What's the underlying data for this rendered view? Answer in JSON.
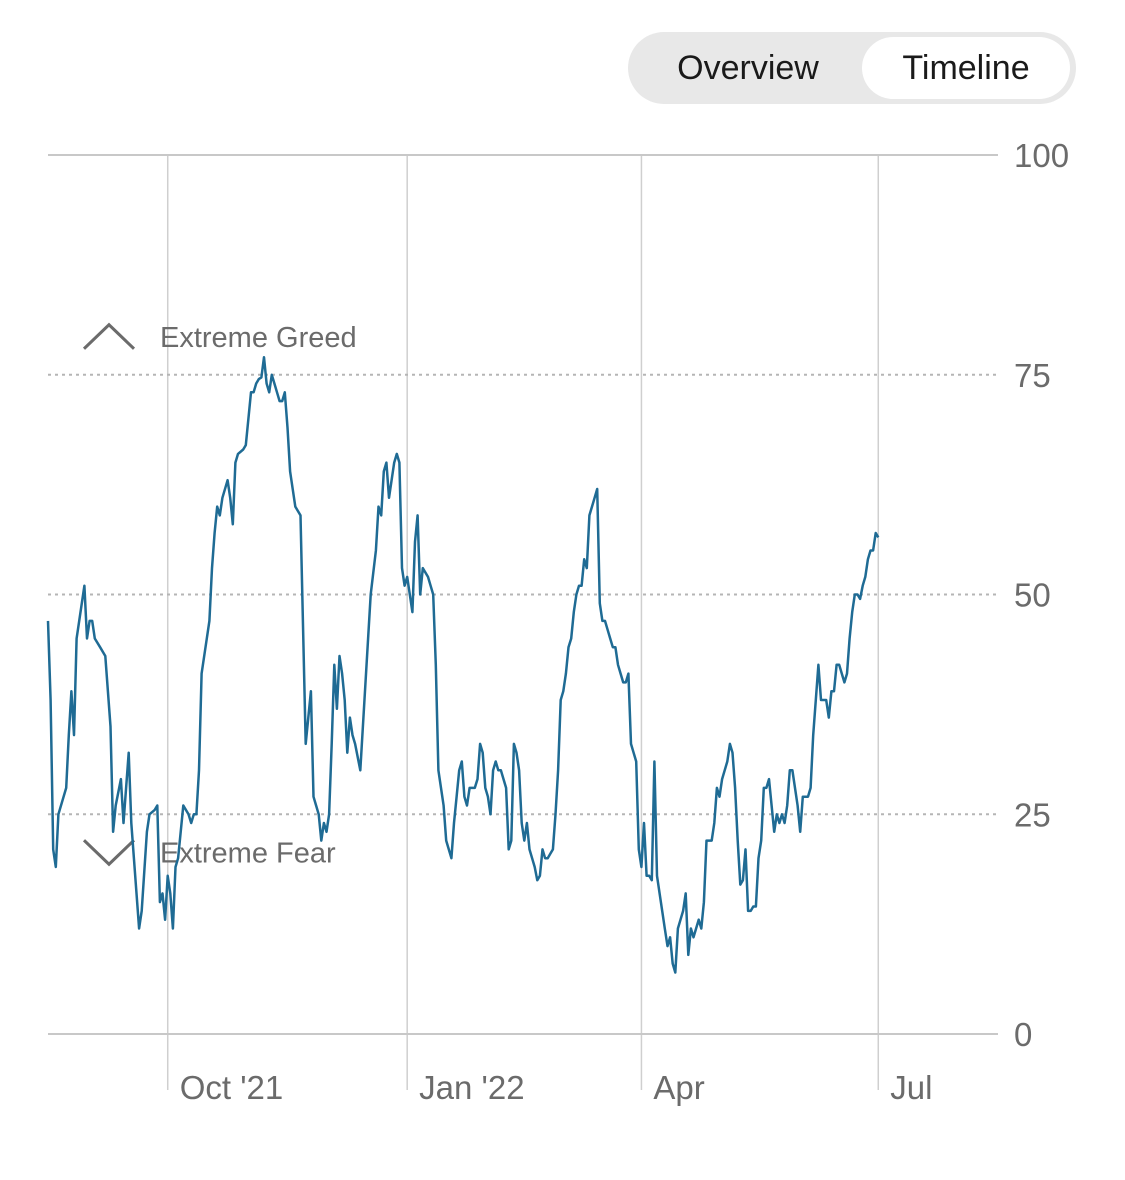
{
  "toggle": {
    "options": [
      "Overview",
      "Timeline"
    ],
    "selected": "Timeline"
  },
  "colors": {
    "line": "#1f6b94",
    "grid": "#b5b5b5",
    "axis_text": "#6b6b6b",
    "toggle_bg": "#e8e8e8"
  },
  "icons": {
    "greed": "chevron-up-icon",
    "fear": "chevron-down-icon"
  },
  "chart_data": {
    "type": "line",
    "title": "",
    "xlabel": "",
    "ylabel": "",
    "ylim": [
      0,
      100
    ],
    "y_ticks": [
      0,
      25,
      50,
      75,
      100
    ],
    "x_ticks": [
      {
        "label": "Oct '21",
        "day": 30
      },
      {
        "label": "Jan '22",
        "day": 122
      },
      {
        "label": "Apr",
        "day": 212
      },
      {
        "label": "Jul",
        "day": 303
      }
    ],
    "x_unit": "days since Sep 1, 2021",
    "xlim": [
      -16,
      349
    ],
    "zones": [
      {
        "label": "Extreme Greed",
        "value": 75,
        "icon": "chevron-up-icon"
      },
      {
        "label": "Extreme Fear",
        "value": 25,
        "icon": "chevron-down-icon"
      }
    ],
    "grid": "dotted at 25/50/75, solid at 100 and 0, vertical at month ticks",
    "series": [
      {
        "name": "",
        "points": [
          [
            -16,
            47
          ],
          [
            -15,
            38
          ],
          [
            -14,
            21
          ],
          [
            -13,
            19
          ],
          [
            -12,
            25
          ],
          [
            -10,
            27
          ],
          [
            -9,
            28
          ],
          [
            -8,
            34
          ],
          [
            -7,
            39
          ],
          [
            -6,
            34
          ],
          [
            -5,
            45
          ],
          [
            -4,
            47
          ],
          [
            -3,
            49
          ],
          [
            -2,
            51
          ],
          [
            -1,
            45
          ],
          [
            0,
            47
          ],
          [
            1,
            47
          ],
          [
            2,
            45
          ],
          [
            4,
            44
          ],
          [
            6,
            43
          ],
          [
            8,
            35
          ],
          [
            9,
            23
          ],
          [
            10,
            26
          ],
          [
            12,
            29
          ],
          [
            13,
            24
          ],
          [
            14,
            28
          ],
          [
            15,
            32
          ],
          [
            16,
            24
          ],
          [
            17,
            20
          ],
          [
            19,
            12
          ],
          [
            20,
            14
          ],
          [
            22,
            23
          ],
          [
            23,
            25
          ],
          [
            25,
            25.5
          ],
          [
            26,
            26
          ],
          [
            27,
            15
          ],
          [
            28,
            16
          ],
          [
            29,
            13
          ],
          [
            30,
            18
          ],
          [
            31,
            16
          ],
          [
            32,
            12
          ],
          [
            33,
            19
          ],
          [
            34,
            20
          ],
          [
            36,
            26
          ],
          [
            38,
            25
          ],
          [
            39,
            24
          ],
          [
            40,
            25
          ],
          [
            41,
            25
          ],
          [
            42,
            30
          ],
          [
            43,
            41
          ],
          [
            45,
            45
          ],
          [
            46,
            47
          ],
          [
            47,
            53
          ],
          [
            48,
            57
          ],
          [
            49,
            60
          ],
          [
            50,
            59
          ],
          [
            51,
            61
          ],
          [
            53,
            63
          ],
          [
            54,
            61
          ],
          [
            55,
            58
          ],
          [
            56,
            65
          ],
          [
            57,
            66
          ],
          [
            59,
            66.5
          ],
          [
            60,
            67
          ],
          [
            61,
            70
          ],
          [
            62,
            73
          ],
          [
            63,
            73
          ],
          [
            64,
            74
          ],
          [
            65,
            74.5
          ],
          [
            66,
            74.7
          ],
          [
            67,
            77
          ],
          [
            68,
            74
          ],
          [
            69,
            73
          ],
          [
            70,
            75
          ],
          [
            71,
            74
          ],
          [
            72,
            73
          ],
          [
            73,
            72
          ],
          [
            74,
            72
          ],
          [
            75,
            73
          ],
          [
            76,
            69
          ],
          [
            77,
            64
          ],
          [
            78,
            62
          ],
          [
            79,
            60
          ],
          [
            80,
            59.5
          ],
          [
            81,
            59
          ],
          [
            82,
            46
          ],
          [
            83,
            33
          ],
          [
            84,
            36
          ],
          [
            85,
            39
          ],
          [
            86,
            27
          ],
          [
            87,
            26
          ],
          [
            88,
            25
          ],
          [
            89,
            22
          ],
          [
            90,
            24
          ],
          [
            91,
            23
          ],
          [
            92,
            25
          ],
          [
            93,
            33
          ],
          [
            94,
            42
          ],
          [
            95,
            37
          ],
          [
            96,
            43
          ],
          [
            97,
            41
          ],
          [
            98,
            38
          ],
          [
            99,
            32
          ],
          [
            100,
            36
          ],
          [
            101,
            34
          ],
          [
            102,
            33
          ],
          [
            104,
            30
          ],
          [
            106,
            40
          ],
          [
            107,
            45
          ],
          [
            108,
            50
          ],
          [
            110,
            55
          ],
          [
            111,
            60
          ],
          [
            112,
            59
          ],
          [
            113,
            64
          ],
          [
            114,
            65
          ],
          [
            115,
            61
          ],
          [
            116,
            63
          ],
          [
            117,
            65
          ],
          [
            118,
            66
          ],
          [
            119,
            65
          ],
          [
            120,
            53
          ],
          [
            121,
            51
          ],
          [
            122,
            52
          ],
          [
            123,
            50
          ],
          [
            124,
            48
          ],
          [
            125,
            56
          ],
          [
            126,
            59
          ],
          [
            127,
            50
          ],
          [
            128,
            53
          ],
          [
            130,
            52
          ],
          [
            131,
            51
          ],
          [
            132,
            50
          ],
          [
            133,
            42
          ],
          [
            134,
            30
          ],
          [
            135,
            28
          ],
          [
            136,
            26
          ],
          [
            137,
            22
          ],
          [
            138,
            21
          ],
          [
            139,
            20
          ],
          [
            140,
            24
          ],
          [
            141,
            27
          ],
          [
            142,
            30
          ],
          [
            143,
            31
          ],
          [
            144,
            27
          ],
          [
            145,
            26
          ],
          [
            146,
            28
          ],
          [
            147,
            28
          ],
          [
            148,
            28
          ],
          [
            149,
            29
          ],
          [
            150,
            33
          ],
          [
            151,
            32
          ],
          [
            152,
            28
          ],
          [
            153,
            27
          ],
          [
            154,
            25
          ],
          [
            155,
            30
          ],
          [
            156,
            31
          ],
          [
            157,
            30
          ],
          [
            158,
            30
          ],
          [
            159,
            29
          ],
          [
            160,
            28
          ],
          [
            161,
            21
          ],
          [
            162,
            22
          ],
          [
            163,
            33
          ],
          [
            164,
            32
          ],
          [
            165,
            30
          ],
          [
            166,
            24
          ],
          [
            167,
            22
          ],
          [
            168,
            24
          ],
          [
            169,
            21
          ],
          [
            170,
            20
          ],
          [
            171,
            19
          ],
          [
            172,
            17.5
          ],
          [
            173,
            18
          ],
          [
            174,
            21
          ],
          [
            175,
            20
          ],
          [
            176,
            20
          ],
          [
            177,
            20.5
          ],
          [
            178,
            21
          ],
          [
            179,
            25
          ],
          [
            180,
            30
          ],
          [
            181,
            38
          ],
          [
            182,
            39
          ],
          [
            183,
            41
          ],
          [
            184,
            44
          ],
          [
            185,
            45
          ],
          [
            186,
            48
          ],
          [
            187,
            50
          ],
          [
            188,
            51
          ],
          [
            189,
            51
          ],
          [
            190,
            54
          ],
          [
            191,
            53
          ],
          [
            192,
            59
          ],
          [
            193,
            60
          ],
          [
            194,
            61
          ],
          [
            195,
            62
          ],
          [
            196,
            49
          ],
          [
            197,
            47
          ],
          [
            198,
            47
          ],
          [
            199,
            46
          ],
          [
            200,
            45
          ],
          [
            201,
            44
          ],
          [
            202,
            44
          ],
          [
            203,
            42
          ],
          [
            204,
            41
          ],
          [
            205,
            40
          ],
          [
            206,
            40
          ],
          [
            207,
            41
          ],
          [
            208,
            33
          ],
          [
            209,
            32
          ],
          [
            210,
            31
          ],
          [
            211,
            21
          ],
          [
            212,
            19
          ],
          [
            213,
            24
          ],
          [
            214,
            18
          ],
          [
            215,
            18
          ],
          [
            216,
            17.5
          ],
          [
            217,
            31
          ],
          [
            218,
            18
          ],
          [
            219,
            16
          ],
          [
            220,
            14
          ],
          [
            221,
            12
          ],
          [
            222,
            10
          ],
          [
            223,
            11
          ],
          [
            224,
            8
          ],
          [
            225,
            7
          ],
          [
            226,
            12
          ],
          [
            227,
            13
          ],
          [
            228,
            14
          ],
          [
            229,
            16
          ],
          [
            230,
            9
          ],
          [
            231,
            12
          ],
          [
            232,
            11
          ],
          [
            233,
            12
          ],
          [
            234,
            13
          ],
          [
            235,
            12
          ],
          [
            236,
            15
          ],
          [
            237,
            22
          ],
          [
            238,
            22
          ],
          [
            239,
            22
          ],
          [
            240,
            24
          ],
          [
            241,
            28
          ],
          [
            242,
            27
          ],
          [
            243,
            29
          ],
          [
            244,
            30
          ],
          [
            245,
            31
          ],
          [
            246,
            33
          ],
          [
            247,
            32
          ],
          [
            248,
            28
          ],
          [
            249,
            22
          ],
          [
            250,
            17
          ],
          [
            251,
            17.5
          ],
          [
            252,
            21
          ],
          [
            253,
            14
          ],
          [
            254,
            14
          ],
          [
            255,
            14.5
          ],
          [
            256,
            14.5
          ],
          [
            257,
            20
          ],
          [
            258,
            22
          ],
          [
            259,
            28
          ],
          [
            260,
            28
          ],
          [
            261,
            29
          ],
          [
            262,
            26
          ],
          [
            263,
            23
          ],
          [
            264,
            25
          ],
          [
            265,
            24
          ],
          [
            266,
            25
          ],
          [
            267,
            24
          ],
          [
            268,
            26
          ],
          [
            269,
            30
          ],
          [
            270,
            30
          ],
          [
            271,
            28
          ],
          [
            272,
            26
          ],
          [
            273,
            23
          ],
          [
            274,
            27
          ],
          [
            275,
            27
          ],
          [
            276,
            27
          ],
          [
            277,
            28
          ],
          [
            278,
            34
          ],
          [
            279,
            38
          ],
          [
            280,
            42
          ],
          [
            281,
            38
          ],
          [
            282,
            38
          ],
          [
            283,
            38
          ],
          [
            284,
            36
          ],
          [
            285,
            39
          ],
          [
            286,
            39
          ],
          [
            287,
            42
          ],
          [
            288,
            42
          ],
          [
            289,
            41
          ],
          [
            290,
            40
          ],
          [
            291,
            41
          ],
          [
            292,
            45
          ],
          [
            293,
            48
          ],
          [
            294,
            50
          ],
          [
            295,
            50
          ],
          [
            296,
            49.5
          ],
          [
            297,
            51
          ],
          [
            298,
            52
          ],
          [
            299,
            54
          ],
          [
            300,
            55
          ],
          [
            301,
            55
          ],
          [
            302,
            57
          ],
          [
            303,
            56.5
          ]
        ]
      }
    ]
  }
}
